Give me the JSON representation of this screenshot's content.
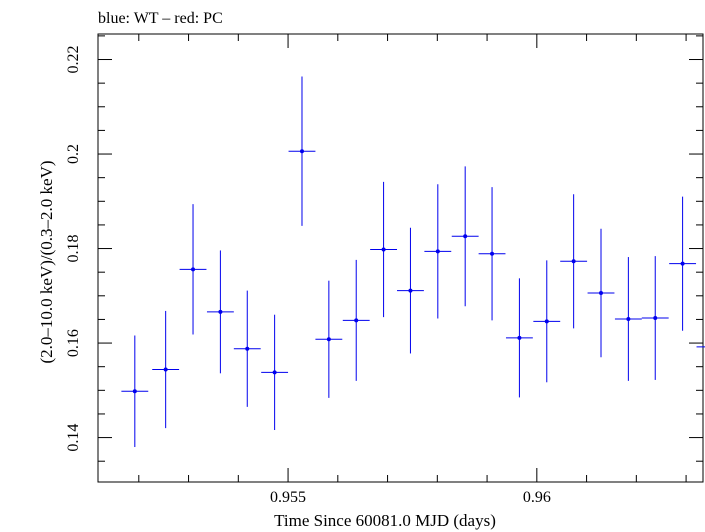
{
  "header": {
    "title": "blue: WT – red: PC"
  },
  "chart_data": {
    "type": "scatter",
    "title": "blue: WT – red: PC",
    "xlabel": "Time Since 60081.0 MJD (days)",
    "ylabel": "(2.0–10.0 keV)/(0.3–2.0 keV)",
    "xlim": [
      0.95118,
      0.96334
    ],
    "ylim": [
      0.1306,
      0.2254
    ],
    "x_ticks": [
      {
        "value": 0.955,
        "label": "0.955"
      },
      {
        "value": 0.96,
        "label": "0.96"
      }
    ],
    "y_ticks": [
      {
        "value": 0.14,
        "label": "0.14"
      },
      {
        "value": 0.16,
        "label": "0.16"
      },
      {
        "value": 0.18,
        "label": "0.18"
      },
      {
        "value": 0.2,
        "label": "0.2"
      },
      {
        "value": 0.22,
        "label": "0.22"
      }
    ],
    "x_minor_step": 0.001,
    "y_minor_step": 0.005,
    "grid": false,
    "series": [
      {
        "color": "#0000ee",
        "xerr": 0.00027,
        "x": [
          0.95192,
          0.95254,
          0.95309,
          0.95364,
          0.95418,
          0.95473,
          0.95528,
          0.95582,
          0.95637,
          0.95692,
          0.95746,
          0.95801,
          0.95856,
          0.9591,
          0.95965,
          0.9602,
          0.96074,
          0.96129,
          0.96184,
          0.96238,
          0.96293,
          0.96348
        ],
        "y": [
          0.1498,
          0.1544,
          0.1756,
          0.1666,
          0.1588,
          0.1538,
          0.2006,
          0.1608,
          0.1648,
          0.1798,
          0.1711,
          0.1794,
          0.1826,
          0.1789,
          0.1611,
          0.1646,
          0.1773,
          0.1706,
          0.1651,
          0.1653,
          0.1768,
          0.1592
        ],
        "yerr": [
          0.0118,
          0.0124,
          0.0138,
          0.013,
          0.0123,
          0.0122,
          0.0158,
          0.0124,
          0.0128,
          0.0143,
          0.0133,
          0.0142,
          0.0148,
          0.0141,
          0.0126,
          0.0129,
          0.0142,
          0.0136,
          0.0131,
          0.0131,
          0.0142,
          0.0125
        ]
      }
    ]
  }
}
